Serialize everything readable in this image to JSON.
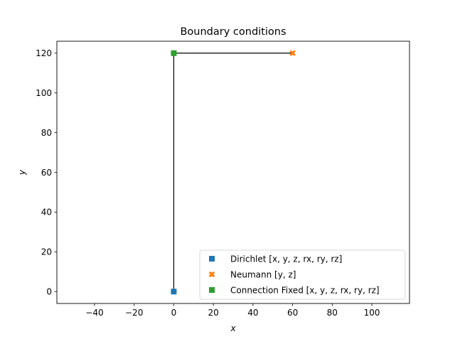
{
  "chart_data": {
    "type": "scatter",
    "title": "Boundary conditions",
    "xlabel": "x",
    "ylabel": "y",
    "xlim": [
      -59,
      119
    ],
    "ylim": [
      -6,
      126
    ],
    "xticks": [
      -40,
      -20,
      0,
      20,
      40,
      60,
      80,
      100
    ],
    "xtick_labels": [
      "−40",
      "−20",
      "0",
      "20",
      "40",
      "60",
      "80",
      "100"
    ],
    "yticks": [
      0,
      20,
      40,
      60,
      80,
      100,
      120
    ],
    "ytick_labels": [
      "0",
      "20",
      "40",
      "60",
      "80",
      "100",
      "120"
    ],
    "grid": false,
    "legend_position": "lower-right",
    "structure_lines": [
      {
        "x": [
          0,
          0
        ],
        "y": [
          0,
          120
        ]
      },
      {
        "x": [
          0,
          60
        ],
        "y": [
          120,
          120
        ]
      }
    ],
    "series": [
      {
        "name": "Dirichlet  [x, y, z, rx, ry, rz]",
        "marker": "square",
        "color": "#1f77b4",
        "x": [
          0
        ],
        "y": [
          0
        ]
      },
      {
        "name": "Neumann  [y, z]",
        "marker": "x",
        "color": "#ff7f0e",
        "x": [
          60
        ],
        "y": [
          120
        ]
      },
      {
        "name": "Connection Fixed [x, y, z, rx, ry, rz]",
        "marker": "square",
        "color": "#2ca02c",
        "x": [
          0
        ],
        "y": [
          120
        ]
      }
    ]
  }
}
